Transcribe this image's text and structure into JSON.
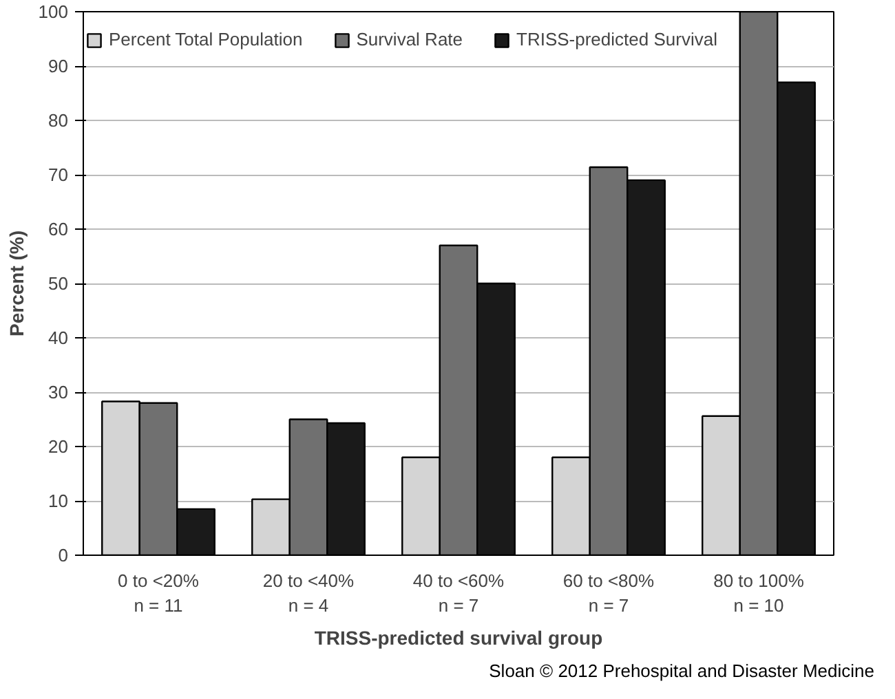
{
  "chart_data": {
    "type": "bar",
    "xlabel": "TRISS-predicted survival group",
    "ylabel": "Percent (%)",
    "categories": [
      "0 to <20%\nn = 11",
      "20 to <40%\nn = 4",
      "40 to <60%\nn = 7",
      "60 to <80%\nn = 7",
      "80 to 100%\nn = 10"
    ],
    "series": [
      {
        "name": "Percent Total Population",
        "color": "#d4d4d4",
        "values": [
          28.3,
          10.3,
          18,
          18,
          25.6
        ]
      },
      {
        "name": "Survival Rate",
        "color": "#707070",
        "values": [
          28,
          25,
          57,
          71.4,
          100
        ]
      },
      {
        "name": "TRISS-predicted Survival",
        "color": "#1a1a1a",
        "values": [
          8.5,
          24.3,
          50,
          69,
          87
        ]
      }
    ],
    "ylim": [
      0,
      100
    ],
    "yticks": [
      0,
      10,
      20,
      30,
      40,
      50,
      60,
      70,
      80,
      90,
      100
    ],
    "grid": "y",
    "legend": "top",
    "annotations": [
      "Sloan © 2012 Prehospital and Disaster Medicine"
    ]
  }
}
